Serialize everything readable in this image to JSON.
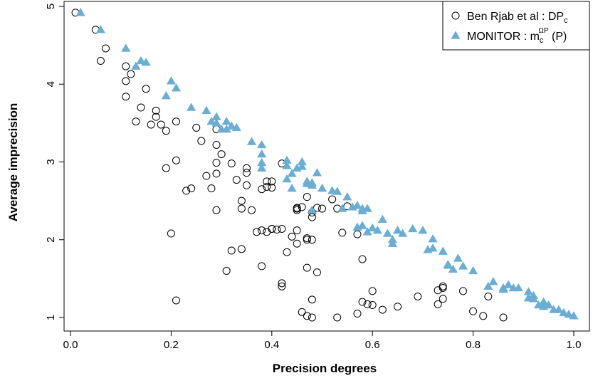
{
  "chart_data": {
    "type": "scatter",
    "xlabel": "Precision degrees",
    "ylabel": "Average imprecision",
    "xlim": [
      0,
      1
    ],
    "ylim": [
      1,
      5
    ],
    "xticks": [
      "0.0",
      "0.2",
      "0.4",
      "0.6",
      "0.8",
      "1.0"
    ],
    "yticks": [
      "1",
      "2",
      "3",
      "4",
      "5"
    ],
    "grid": false,
    "legend_position": "top-right",
    "series": [
      {
        "name": "Ben Rjab et al : DP_c",
        "legend_label": "Ben Rjab et al : DP",
        "legend_sub": "c",
        "marker": "open-circle",
        "color": "#000000",
        "x": [
          0.01,
          0.05,
          0.07,
          0.06,
          0.11,
          0.12,
          0.11,
          0.15,
          0.11,
          0.17,
          0.14,
          0.17,
          0.16,
          0.13,
          0.18,
          0.19,
          0.21,
          0.25,
          0.29,
          0.29,
          0.3,
          0.26,
          0.29,
          0.29,
          0.32,
          0.21,
          0.19,
          0.23,
          0.24,
          0.28,
          0.27,
          0.33,
          0.35,
          0.35,
          0.35,
          0.34,
          0.38,
          0.39,
          0.4,
          0.39,
          0.42,
          0.4,
          0.45,
          0.46,
          0.34,
          0.36,
          0.29,
          0.39,
          0.41,
          0.45,
          0.45,
          0.47,
          0.48,
          0.49,
          0.5,
          0.52,
          0.53,
          0.37,
          0.38,
          0.4,
          0.42,
          0.44,
          0.45,
          0.47,
          0.48,
          0.48,
          0.54,
          0.57,
          0.58,
          0.55,
          0.43,
          0.47,
          0.45,
          0.4,
          0.32,
          0.34,
          0.2,
          0.31,
          0.38,
          0.47,
          0.49,
          0.42,
          0.42,
          0.48,
          0.46,
          0.47,
          0.48,
          0.53,
          0.58,
          0.57,
          0.59,
          0.6,
          0.62,
          0.6,
          0.65,
          0.69,
          0.73,
          0.74,
          0.74,
          0.73,
          0.74,
          0.78,
          0.8,
          0.82,
          0.83,
          0.86,
          0.21
        ],
        "y": [
          4.92,
          4.7,
          4.46,
          4.3,
          4.23,
          4.13,
          4.04,
          3.94,
          3.84,
          3.66,
          3.7,
          3.58,
          3.48,
          3.52,
          3.48,
          3.4,
          3.52,
          3.44,
          3.42,
          3.22,
          3.1,
          3.27,
          2.99,
          2.85,
          2.98,
          3.02,
          2.92,
          2.63,
          2.66,
          2.66,
          2.82,
          2.77,
          2.92,
          2.86,
          2.7,
          2.5,
          2.65,
          2.68,
          2.67,
          2.75,
          2.98,
          2.75,
          2.38,
          2.42,
          2.4,
          2.38,
          2.38,
          2.1,
          2.13,
          2.4,
          2.41,
          2.55,
          2.35,
          2.41,
          2.4,
          2.52,
          2.4,
          2.1,
          2.12,
          2.14,
          2.14,
          2.04,
          1.95,
          2.0,
          2.0,
          2.29,
          2.09,
          2.07,
          1.75,
          2.43,
          1.84,
          2.02,
          2.12,
          2.14,
          1.86,
          1.88,
          2.08,
          1.6,
          1.66,
          1.64,
          1.58,
          1.4,
          1.44,
          1.23,
          1.07,
          1.02,
          1.0,
          1.0,
          1.2,
          1.05,
          1.17,
          1.16,
          1.1,
          1.34,
          1.14,
          1.27,
          1.35,
          1.38,
          1.24,
          1.17,
          1.4,
          1.34,
          1.08,
          1.02,
          1.27,
          1.0,
          1.22
        ]
      },
      {
        "name": "MONITOR : m_c^{Ω_P} (P)",
        "legend_label": "MONITOR : m",
        "legend_sub": "c",
        "legend_sup": "ΩP",
        "legend_suffix": " (P)",
        "marker": "filled-triangle",
        "color": "#6aaed6",
        "x": [
          0.02,
          0.06,
          0.11,
          0.14,
          0.13,
          0.15,
          0.2,
          0.21,
          0.19,
          0.24,
          0.27,
          0.29,
          0.29,
          0.31,
          0.32,
          0.31,
          0.28,
          0.33,
          0.3,
          0.36,
          0.38,
          0.38,
          0.38,
          0.38,
          0.43,
          0.43,
          0.45,
          0.46,
          0.46,
          0.47,
          0.48,
          0.44,
          0.47,
          0.48,
          0.49,
          0.43,
          0.44,
          0.48,
          0.5,
          0.52,
          0.53,
          0.54,
          0.55,
          0.56,
          0.57,
          0.58,
          0.57,
          0.58,
          0.59,
          0.59,
          0.6,
          0.58,
          0.61,
          0.62,
          0.63,
          0.64,
          0.64,
          0.65,
          0.66,
          0.68,
          0.7,
          0.71,
          0.72,
          0.72,
          0.74,
          0.75,
          0.75,
          0.76,
          0.77,
          0.78,
          0.8,
          0.83,
          0.84,
          0.86,
          0.86,
          0.87,
          0.88,
          0.89,
          0.91,
          0.91,
          0.92,
          0.92,
          0.93,
          0.94,
          0.94,
          0.95,
          0.96,
          0.97,
          0.98,
          0.99,
          1.0
        ],
        "y": [
          4.92,
          4.7,
          4.46,
          4.3,
          4.23,
          4.28,
          4.04,
          3.95,
          3.85,
          3.7,
          3.66,
          3.58,
          3.5,
          3.52,
          3.46,
          3.42,
          3.52,
          3.44,
          3.42,
          3.26,
          3.22,
          3.1,
          2.99,
          2.92,
          3.02,
          2.95,
          2.92,
          2.94,
          3.0,
          2.72,
          2.73,
          2.85,
          2.75,
          2.7,
          2.86,
          2.78,
          2.66,
          2.38,
          2.66,
          2.63,
          2.62,
          2.4,
          2.55,
          2.42,
          2.44,
          2.4,
          2.16,
          2.37,
          2.4,
          2.1,
          2.15,
          2.18,
          2.12,
          2.26,
          2.08,
          2.0,
          1.95,
          2.12,
          2.08,
          2.14,
          2.12,
          1.87,
          2.01,
          1.89,
          1.85,
          1.67,
          1.68,
          1.62,
          1.76,
          1.66,
          1.6,
          1.4,
          1.46,
          1.38,
          1.36,
          1.42,
          1.38,
          1.38,
          1.33,
          1.25,
          1.28,
          1.24,
          1.16,
          1.2,
          1.14,
          1.16,
          1.1,
          1.1,
          1.06,
          1.04,
          1.02
        ]
      }
    ]
  }
}
